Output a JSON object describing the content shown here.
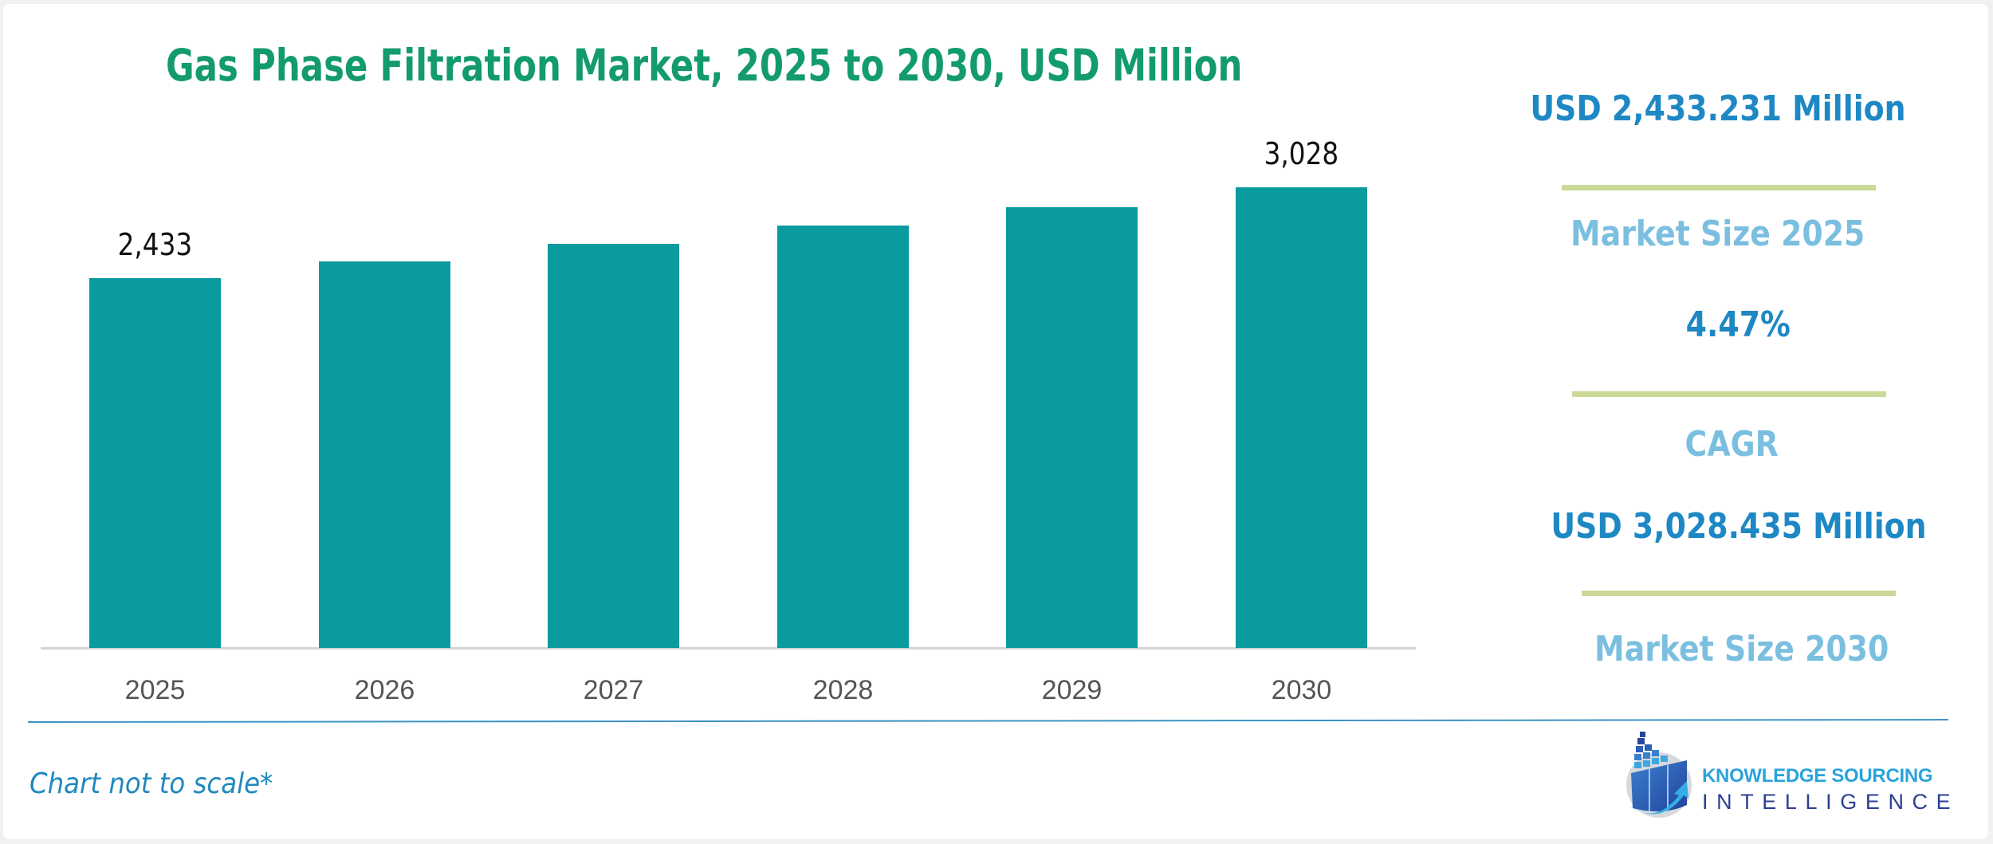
{
  "header": {
    "title": "Gas Phase Filtration Market, 2025 to 2030, USD Million"
  },
  "chart_data": {
    "type": "bar",
    "title": "Gas Phase Filtration Market, 2025 to 2030, USD Million",
    "xlabel": "",
    "ylabel": "USD Million",
    "categories": [
      "2025",
      "2026",
      "2027",
      "2028",
      "2029",
      "2030"
    ],
    "values": [
      2433,
      2542,
      2655,
      2774,
      2898,
      3028
    ],
    "data_labels": [
      "2,433",
      "",
      "",
      "",
      "",
      "3,028"
    ],
    "grid": false,
    "legend": null,
    "annotations": [
      "Chart not to scale*"
    ],
    "color": "#0a9b9e"
  },
  "kpis": [
    {
      "value": "USD 2,433.231 Million",
      "label": "Market Size 2025"
    },
    {
      "value": "4.47%",
      "label": "CAGR"
    },
    {
      "value": "USD 3,028.435 Million",
      "label": "Market Size 2030"
    }
  ],
  "footnote": "Chart not to scale*",
  "logo": {
    "line1": "KNOWLEDGE SOURCING",
    "line2": "INTELLIGENCE"
  },
  "colors": {
    "title": "#139b6e",
    "bar": "#0a9b9e",
    "kpi_value": "#1e88c4",
    "kpi_label": "#7bbfe0",
    "kpi_rule": "#cad996",
    "divider": "#3d93c4"
  }
}
